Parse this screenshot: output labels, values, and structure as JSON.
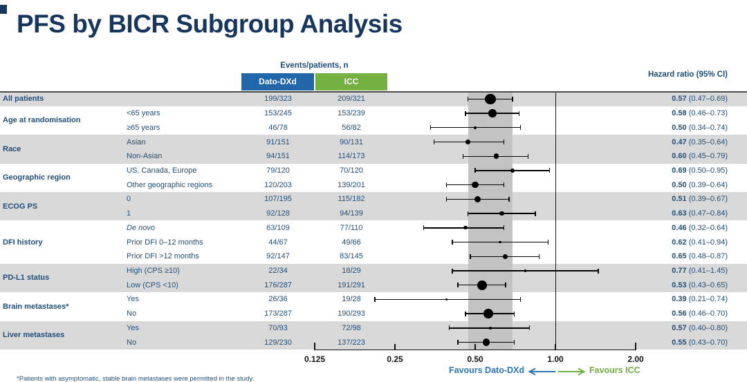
{
  "title": "PFS by BICR Subgroup Analysis",
  "header": {
    "events_patients": "Events/patients, n",
    "arm1": "Dato-DXd",
    "arm2": "ICC",
    "hazard_ratio": "Hazard ratio (95% CI)"
  },
  "favours": {
    "left": "Favours Dato-DXd",
    "right": "Favours ICC"
  },
  "footnote": "*Patients with asymptomatic, stable brain metastases were permitted in the study.",
  "colors": {
    "title_navy": "#17365D",
    "table_text_navy": "#1F4E79",
    "dato_dxd_blue": "#2066A8",
    "icc_green": "#76B043",
    "row_stripe_gray": "#D9D9D9",
    "reference_band_gray": "#C3C3C3",
    "favours_left_blue": "#2E74B5",
    "favours_right_green": "#6FAE44"
  },
  "chart_data": {
    "type": "forest",
    "title": "PFS by BICR Subgroup Analysis",
    "x_scale": "log2",
    "axis_ticks": [
      "0.125",
      "0.25",
      "0.50",
      "1.00",
      "2.00"
    ],
    "axis_values": [
      0.125,
      0.25,
      0.5,
      1.0,
      2.0
    ],
    "xlim": [
      0.125,
      2.0
    ],
    "reference_line": 1.0,
    "reference_band": [
      0.47,
      0.69
    ],
    "arms": [
      "Dato-DXd",
      "ICC"
    ],
    "groups": [
      {
        "label": "All patients",
        "shaded": true,
        "rows": [
          {
            "sub": "",
            "dato": "199/323",
            "icc": "209/321",
            "hr": 0.57,
            "lo": 0.47,
            "hi": 0.69
          }
        ]
      },
      {
        "label": "Age at randomisation",
        "shaded": false,
        "rows": [
          {
            "sub": "<65 years",
            "dato": "153/245",
            "icc": "153/239",
            "hr": 0.58,
            "lo": 0.46,
            "hi": 0.73
          },
          {
            "sub": "≥65 years",
            "dato": "46/78",
            "icc": "56/82",
            "hr": 0.5,
            "lo": 0.34,
            "hi": 0.74
          }
        ]
      },
      {
        "label": "Race",
        "shaded": true,
        "rows": [
          {
            "sub": "Asian",
            "dato": "91/151",
            "icc": "90/131",
            "hr": 0.47,
            "lo": 0.35,
            "hi": 0.64
          },
          {
            "sub": "Non-Asian",
            "dato": "94/151",
            "icc": "114/173",
            "hr": 0.6,
            "lo": 0.45,
            "hi": 0.79
          }
        ]
      },
      {
        "label": "Geographic region",
        "shaded": false,
        "rows": [
          {
            "sub": "US, Canada, Europe",
            "dato": "79/120",
            "icc": "70/120",
            "hr": 0.69,
            "lo": 0.5,
            "hi": 0.95
          },
          {
            "sub": "Other geographic regions",
            "dato": "120/203",
            "icc": "139/201",
            "hr": 0.5,
            "lo": 0.39,
            "hi": 0.64
          }
        ]
      },
      {
        "label": "ECOG PS",
        "shaded": true,
        "rows": [
          {
            "sub": "0",
            "dato": "107/195",
            "icc": "115/182",
            "hr": 0.51,
            "lo": 0.39,
            "hi": 0.67
          },
          {
            "sub": "1",
            "dato": "92/128",
            "icc": "94/139",
            "hr": 0.63,
            "lo": 0.47,
            "hi": 0.84
          }
        ]
      },
      {
        "label": "DFI history",
        "shaded": false,
        "rows": [
          {
            "sub": "De novo",
            "italic": true,
            "dato": "63/109",
            "icc": "77/110",
            "hr": 0.46,
            "lo": 0.32,
            "hi": 0.64
          },
          {
            "sub": "Prior DFI 0–12 months",
            "dato": "44/67",
            "icc": "49/66",
            "hr": 0.62,
            "lo": 0.41,
            "hi": 0.94
          },
          {
            "sub": "Prior DFI >12 months",
            "dato": "92/147",
            "icc": "83/145",
            "hr": 0.65,
            "lo": 0.48,
            "hi": 0.87
          }
        ]
      },
      {
        "label": "PD-L1 status",
        "shaded": true,
        "rows": [
          {
            "sub": "High (CPS ≥10)",
            "dato": "22/34",
            "icc": "18/29",
            "hr": 0.77,
            "lo": 0.41,
            "hi": 1.45
          },
          {
            "sub": "Low (CPS <10)",
            "dato": "176/287",
            "icc": "191/291",
            "hr": 0.53,
            "lo": 0.43,
            "hi": 0.65
          }
        ]
      },
      {
        "label": "Brain metastases*",
        "shaded": false,
        "rows": [
          {
            "sub": "Yes",
            "dato": "26/36",
            "icc": "19/28",
            "hr": 0.39,
            "lo": 0.21,
            "hi": 0.74
          },
          {
            "sub": "No",
            "dato": "173/287",
            "icc": "190/293",
            "hr": 0.56,
            "lo": 0.46,
            "hi": 0.7
          }
        ]
      },
      {
        "label": "Liver metastases",
        "shaded": true,
        "rows": [
          {
            "sub": "Yes",
            "dato": "70/93",
            "icc": "72/98",
            "hr": 0.57,
            "lo": 0.4,
            "hi": 0.8
          },
          {
            "sub": "No",
            "dato": "129/230",
            "icc": "137/223",
            "hr": 0.55,
            "lo": 0.43,
            "hi": 0.7
          }
        ]
      }
    ]
  }
}
